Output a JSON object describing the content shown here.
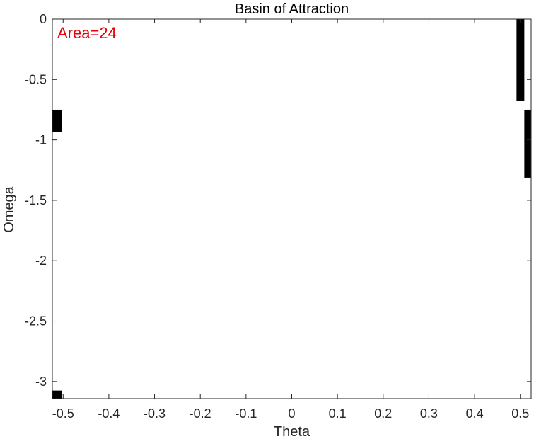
{
  "chart_data": {
    "type": "heatmap",
    "title": "Basin of Attraction",
    "xlabel": "Theta",
    "ylabel": "Omega",
    "xlim": [
      -0.5236,
      0.5236
    ],
    "ylim": [
      -3.1416,
      0.0
    ],
    "xticks": [
      {
        "value": -0.5,
        "label": "-0.5"
      },
      {
        "value": -0.4,
        "label": "-0.4"
      },
      {
        "value": -0.3,
        "label": "-0.3"
      },
      {
        "value": -0.2,
        "label": "-0.2"
      },
      {
        "value": -0.1,
        "label": "-0.1"
      },
      {
        "value": 0.0,
        "label": "0"
      },
      {
        "value": 0.1,
        "label": "0.1"
      },
      {
        "value": 0.2,
        "label": "0.2"
      },
      {
        "value": 0.3,
        "label": "0.3"
      },
      {
        "value": 0.4,
        "label": "0.4"
      },
      {
        "value": 0.5,
        "label": "0.5"
      }
    ],
    "yticks": [
      {
        "value": 0.0,
        "label": "0"
      },
      {
        "value": -0.5,
        "label": "-0.5"
      },
      {
        "value": -1.0,
        "label": "-1"
      },
      {
        "value": -1.5,
        "label": "-1.5"
      },
      {
        "value": -2.0,
        "label": "-2"
      },
      {
        "value": -2.5,
        "label": "-2.5"
      },
      {
        "value": -3.0,
        "label": "-3"
      }
    ],
    "regions": [
      {
        "theta": [
          -0.5236,
          -0.5027
        ],
        "omega": [
          -0.9375,
          -0.75
        ]
      },
      {
        "theta": [
          -0.5236,
          -0.5027
        ],
        "omega": [
          -3.1416,
          -3.075
        ]
      },
      {
        "theta": [
          0.4917,
          0.5087
        ],
        "omega": [
          -0.675,
          0.0
        ]
      },
      {
        "theta": [
          0.5087,
          0.5236
        ],
        "omega": [
          -1.3125,
          -0.75
        ]
      }
    ],
    "region_color": "#000000",
    "background_color": "#ffffff",
    "grid": false,
    "annotation": {
      "text": "Area=24",
      "color": "#e8000b",
      "position": "top-left"
    }
  }
}
